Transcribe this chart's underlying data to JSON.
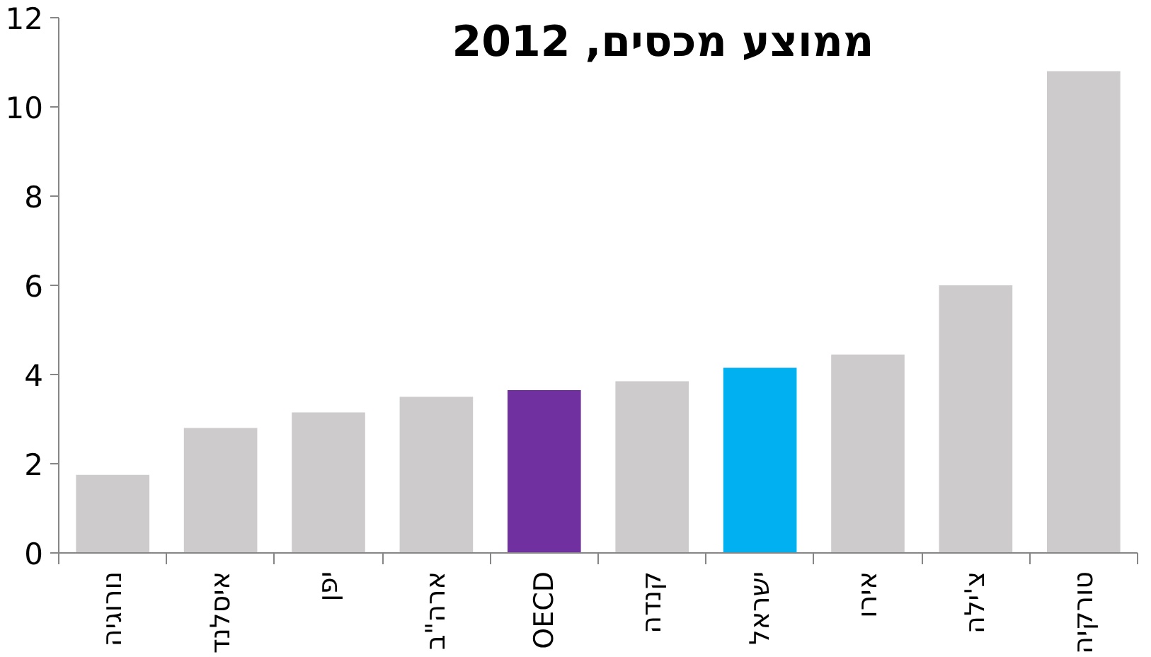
{
  "chart_data": {
    "type": "bar",
    "title": "ממוצע מכסים, 2012",
    "categories": [
      "נורוגיה",
      "איסלנד",
      "יפן",
      "ארה\"ב",
      "OECD",
      "קנדה",
      "ישראל",
      "אירו",
      "צ'ילה",
      "טורקיה"
    ],
    "values": [
      1.75,
      2.8,
      3.15,
      3.5,
      3.65,
      3.85,
      4.15,
      4.45,
      6.0,
      10.8
    ],
    "colors": [
      "#cdcbcc",
      "#cdcbcc",
      "#cdcbcc",
      "#cdcbcc",
      "#7030a0",
      "#cdcbcc",
      "#00b0f0",
      "#cdcbcc",
      "#cdcbcc",
      "#cdcbcc"
    ],
    "ylim": [
      0,
      12
    ],
    "yticks": [
      0,
      2,
      4,
      6,
      8,
      10,
      12
    ],
    "grid": false
  }
}
